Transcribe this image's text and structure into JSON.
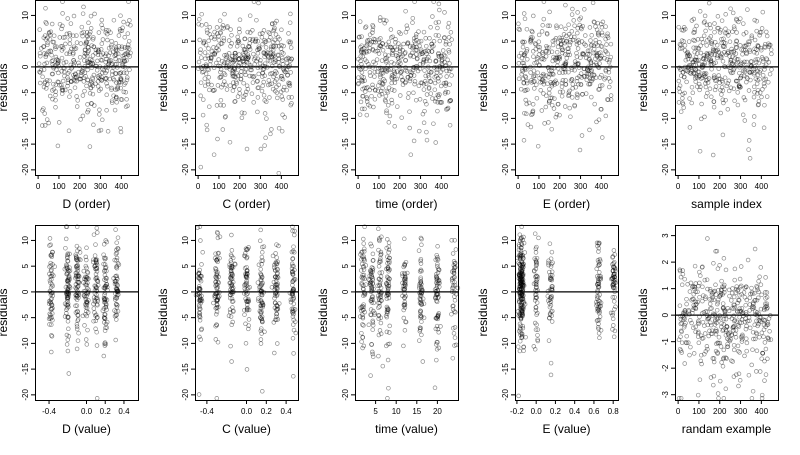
{
  "figure": {
    "ylabel": "residuals"
  },
  "chart_data": [
    {
      "type": "scatter",
      "xlabel": "D (order)",
      "ylabel": "residuals",
      "xlim": [
        -15,
        480
      ],
      "ylim": [
        -21,
        13
      ],
      "xticks": [
        0,
        100,
        200,
        300,
        400
      ],
      "xtick_labels": [
        "0",
        "100",
        "200",
        "300",
        "400"
      ],
      "yticks": [
        10,
        5,
        0,
        -5,
        -10,
        -15,
        -20
      ],
      "ytick_labels": [
        "10",
        "5",
        "0",
        "-5",
        "-10",
        "-15",
        "-20"
      ],
      "reference_line": 0,
      "n_points": 450,
      "x_distribution": "uniform",
      "x_range": [
        1,
        450
      ],
      "x_clusters": [],
      "y_center": 1,
      "y_spread": 4.5
    },
    {
      "type": "scatter",
      "xlabel": "C (order)",
      "ylabel": "residuals",
      "xlim": [
        -15,
        480
      ],
      "ylim": [
        -21,
        13
      ],
      "xticks": [
        0,
        100,
        200,
        300,
        400
      ],
      "xtick_labels": [
        "0",
        "100",
        "200",
        "300",
        "400"
      ],
      "yticks": [
        10,
        5,
        0,
        -5,
        -10,
        -15,
        -20
      ],
      "ytick_labels": [
        "10",
        "5",
        "0",
        "-5",
        "-10",
        "-15",
        "-20"
      ],
      "reference_line": 0,
      "n_points": 450,
      "x_distribution": "uniform",
      "x_range": [
        1,
        450
      ],
      "x_clusters": [],
      "y_center": 1,
      "y_spread": 4.5
    },
    {
      "type": "scatter",
      "xlabel": "time (order)",
      "ylabel": "residuals",
      "xlim": [
        -15,
        480
      ],
      "ylim": [
        -21,
        13
      ],
      "xticks": [
        0,
        100,
        200,
        300,
        400
      ],
      "xtick_labels": [
        "0",
        "100",
        "200",
        "300",
        "400"
      ],
      "yticks": [
        10,
        5,
        0,
        -5,
        -10,
        -15,
        -20
      ],
      "ytick_labels": [
        "10",
        "5",
        "0",
        "-5",
        "-10",
        "-15",
        "-20"
      ],
      "reference_line": 0,
      "n_points": 450,
      "x_distribution": "uniform",
      "x_range": [
        1,
        450
      ],
      "x_clusters": [],
      "y_center": 1,
      "y_spread": 4.5
    },
    {
      "type": "scatter",
      "xlabel": "E (order)",
      "ylabel": "residuals",
      "xlim": [
        -15,
        480
      ],
      "ylim": [
        -21,
        13
      ],
      "xticks": [
        0,
        100,
        200,
        300,
        400
      ],
      "xtick_labels": [
        "0",
        "100",
        "200",
        "300",
        "400"
      ],
      "yticks": [
        10,
        5,
        0,
        -5,
        -10,
        -15,
        -20
      ],
      "ytick_labels": [
        "10",
        "5",
        "0",
        "-5",
        "-10",
        "-15",
        "-20"
      ],
      "reference_line": 0,
      "n_points": 450,
      "x_distribution": "uniform",
      "x_range": [
        1,
        450
      ],
      "x_clusters": [],
      "y_center": 1,
      "y_spread": 4.5
    },
    {
      "type": "scatter",
      "xlabel": "sample index",
      "ylabel": "residuals",
      "xlim": [
        -15,
        480
      ],
      "ylim": [
        -21,
        13
      ],
      "xticks": [
        0,
        100,
        200,
        300,
        400
      ],
      "xtick_labels": [
        "0",
        "100",
        "200",
        "300",
        "400"
      ],
      "yticks": [
        10,
        5,
        0,
        -5,
        -10,
        -15,
        -20
      ],
      "ytick_labels": [
        "10",
        "5",
        "0",
        "-5",
        "-10",
        "-15",
        "-20"
      ],
      "reference_line": 0,
      "n_points": 450,
      "x_distribution": "uniform",
      "x_range": [
        1,
        450
      ],
      "x_clusters": [],
      "y_center": 1,
      "y_spread": 4.5
    },
    {
      "type": "scatter",
      "xlabel": "D (value)",
      "ylabel": "residuals",
      "xlim": [
        -0.55,
        0.55
      ],
      "ylim": [
        -21,
        13
      ],
      "xticks": [
        -0.4,
        0,
        0.2,
        0.4
      ],
      "xtick_labels": [
        "-0.4",
        "0.0",
        "0.2",
        "0.4"
      ],
      "yticks": [
        10,
        5,
        0,
        -5,
        -10,
        -15,
        -20
      ],
      "ytick_labels": [
        "10",
        "5",
        "0",
        "-5",
        "-10",
        "-15",
        "-20"
      ],
      "reference_line": 0,
      "n_points": 450,
      "x_distribution": "clustered",
      "x_range": [
        -0.5,
        0.5
      ],
      "x_clusters": [
        -0.38,
        -0.2,
        -0.1,
        0.0,
        0.1,
        0.2,
        0.32
      ],
      "y_center": 1,
      "y_spread": 4.5
    },
    {
      "type": "scatter",
      "xlabel": "C (value)",
      "ylabel": "residuals",
      "xlim": [
        -0.52,
        0.52
      ],
      "ylim": [
        -21,
        13
      ],
      "xticks": [
        -0.4,
        0,
        0.2,
        0.4
      ],
      "xtick_labels": [
        "-0.4",
        "0.0",
        "0.2",
        "0.4"
      ],
      "yticks": [
        10,
        5,
        0,
        -5,
        -10,
        -15,
        -20
      ],
      "ytick_labels": [
        "10",
        "5",
        "0",
        "-5",
        "-10",
        "-15",
        "-20"
      ],
      "reference_line": 0,
      "n_points": 450,
      "x_distribution": "clustered",
      "x_range": [
        -0.5,
        0.5
      ],
      "x_clusters": [
        -0.47,
        -0.3,
        -0.15,
        0.0,
        0.15,
        0.3,
        0.47
      ],
      "y_center": 1,
      "y_spread": 4.5
    },
    {
      "type": "scatter",
      "xlabel": "time (value)",
      "ylabel": "residuals",
      "xlim": [
        0,
        25
      ],
      "ylim": [
        -21,
        13
      ],
      "xticks": [
        5,
        10,
        15,
        20
      ],
      "xtick_labels": [
        "5",
        "10",
        "15",
        "20"
      ],
      "yticks": [
        10,
        5,
        0,
        -5,
        -10,
        -15,
        -20
      ],
      "ytick_labels": [
        "10",
        "5",
        "0",
        "-5",
        "-10",
        "-15",
        "-20"
      ],
      "reference_line": 0,
      "n_points": 450,
      "x_distribution": "clustered",
      "x_range": [
        1,
        24
      ],
      "x_clusters": [
        2,
        4,
        6,
        8,
        12,
        16,
        20,
        24
      ],
      "y_center": 1,
      "y_spread": 4.5
    },
    {
      "type": "scatter",
      "xlabel": "E (value)",
      "ylabel": "residuals",
      "xlim": [
        -0.22,
        0.85
      ],
      "ylim": [
        -21,
        13
      ],
      "xticks": [
        -0.2,
        0,
        0.2,
        0.4,
        0.6,
        0.8
      ],
      "xtick_labels": [
        "-0.2",
        "0.0",
        "0.2",
        "0.4",
        "0.6",
        "0.8"
      ],
      "yticks": [
        10,
        5,
        0,
        -5,
        -10,
        -15,
        -20
      ],
      "ytick_labels": [
        "10",
        "5",
        "0",
        "-5",
        "-10",
        "-15",
        "-20"
      ],
      "reference_line": 0,
      "n_points": 450,
      "x_distribution": "clustered",
      "x_range": [
        -0.18,
        0.82
      ],
      "x_clusters": [
        -0.16,
        -0.16,
        -0.16,
        -0.15,
        -0.14,
        0.0,
        0.15,
        0.65,
        0.8
      ],
      "y_center": 1,
      "y_spread": 4.5
    },
    {
      "type": "scatter",
      "xlabel": "randam example",
      "ylabel": "residuals",
      "xlim": [
        -15,
        480
      ],
      "ylim": [
        -3.2,
        3.4
      ],
      "xticks": [
        0,
        100,
        200,
        300,
        400
      ],
      "xtick_labels": [
        "0",
        "100",
        "200",
        "300",
        "400"
      ],
      "yticks": [
        3,
        2,
        1,
        0,
        -1,
        -2,
        -3
      ],
      "ytick_labels": [
        "3",
        "2",
        "1",
        "0",
        "-1",
        "-2",
        "-3"
      ],
      "reference_line": 0,
      "n_points": 450,
      "x_distribution": "uniform",
      "x_range": [
        1,
        450
      ],
      "x_clusters": [],
      "y_center": 0,
      "y_spread": 1
    }
  ]
}
